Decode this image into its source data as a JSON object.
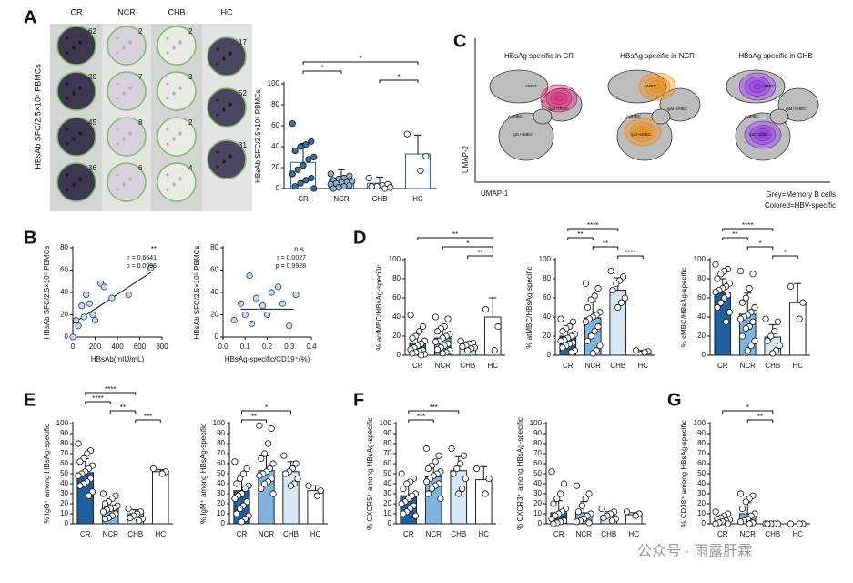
{
  "figure": {
    "panel_letters": [
      "A",
      "B",
      "C",
      "D",
      "E",
      "F",
      "G"
    ],
    "elispot": {
      "ylabel": "HBsAb SFC/2.5×10⁵ PBMCs",
      "columns": [
        {
          "label": "CR",
          "counts": [
            "62",
            "30",
            "45",
            "36"
          ]
        },
        {
          "label": "NCR",
          "counts": [
            "2",
            "7",
            "8",
            "6"
          ]
        },
        {
          "label": "CHB",
          "counts": [
            "2",
            "3",
            "2",
            "4"
          ]
        },
        {
          "label": "HC",
          "counts": [
            "17",
            "52",
            "31"
          ]
        }
      ]
    },
    "umap": {
      "ylabel": "UMAP-2",
      "xlabel": "UMAP-1",
      "panels": [
        {
          "title": "HBsAg specific in CR",
          "color": "#d81b72",
          "labels": [
            "atMBC",
            "actMBC",
            "IgG+cMBC",
            "IgM+cMBC"
          ]
        },
        {
          "title": "HBsAg specific in NCR",
          "color": "#f08a0c",
          "labels": [
            "atMBC",
            "actMBC",
            "IgG+cMBC",
            "IgM+cMBC"
          ]
        },
        {
          "title": "HBsAg specific in CHB",
          "color": "#8a2be2",
          "labels": [
            "atMBC",
            "actMBC",
            "IgG+cMBC",
            "IgM+cMBC"
          ]
        }
      ],
      "legend": [
        "Grey=Memory B cells",
        "Colored=HBV-specific"
      ]
    },
    "watermark": "公众号 · 雨露肝霖"
  },
  "chart_data": [
    {
      "type": "bar",
      "ylabel": "HBsAb SFC/2.5×10⁵ PBMCs",
      "categories": [
        "CR",
        "NCR",
        "CHB",
        "HC"
      ],
      "values": [
        25,
        8,
        5,
        33
      ],
      "errors": [
        18,
        10,
        6,
        18
      ],
      "points": [
        [
          62,
          45,
          42,
          40,
          36,
          30,
          28,
          22,
          18,
          14,
          10,
          8,
          5,
          2,
          0
        ],
        [
          14,
          12,
          10,
          9,
          8,
          7,
          6,
          6,
          5,
          4,
          3,
          2,
          1,
          0
        ],
        [
          10,
          4,
          3,
          2,
          2,
          1,
          0
        ],
        [
          52,
          31,
          17
        ]
      ],
      "colors": [
        "#ffffff",
        "#ffffff",
        "#ffffff",
        "#ffffff"
      ],
      "edge_color": "#1f5f9e",
      "point_colors": [
        "#3a6f9f",
        "#8fb3d3",
        "#ffffff",
        "#ffffff"
      ],
      "ylim": [
        0,
        100
      ],
      "yticks": [
        0,
        20,
        40,
        60,
        80,
        100
      ],
      "brackets": [
        {
          "groups": [
            "CR",
            "HC"
          ],
          "label": "*"
        },
        {
          "groups": [
            "CR",
            "NCR"
          ],
          "label": "*"
        },
        {
          "groups": [
            "CHB",
            "HC"
          ],
          "label": "*"
        }
      ]
    },
    {
      "type": "scatter",
      "ylabel": "HBsAb SFC/2.5×10⁵ PBMCs",
      "xlabel": "HBsAb(mIU/mL)",
      "x": [
        0,
        30,
        50,
        80,
        100,
        120,
        150,
        180,
        200,
        250,
        280,
        350,
        500,
        700
      ],
      "y": [
        0,
        15,
        10,
        28,
        18,
        38,
        30,
        20,
        15,
        48,
        45,
        35,
        38,
        62
      ],
      "fit_x": [
        0,
        700
      ],
      "fit_y": [
        12,
        58
      ],
      "color": "#c9daf0",
      "xlim": [
        0,
        800
      ],
      "xticks": [
        0,
        200,
        400,
        600,
        800
      ],
      "ylim": [
        0,
        80
      ],
      "yticks": [
        0,
        20,
        40,
        60,
        80
      ],
      "annotations": [
        "**",
        "r = 0.6641",
        "p = 0.0096"
      ]
    },
    {
      "type": "scatter",
      "ylabel": "HBsAb SFC/2.5×10⁵ PBMCs",
      "xlabel": "HBsAg-specific/CD19⁺(%)",
      "x": [
        0.05,
        0.08,
        0.1,
        0.12,
        0.13,
        0.15,
        0.18,
        0.2,
        0.22,
        0.25,
        0.27,
        0.3,
        0.33
      ],
      "y": [
        15,
        30,
        20,
        55,
        12,
        35,
        28,
        20,
        40,
        45,
        30,
        10,
        38
      ],
      "fit_x": [
        0.08,
        0.32
      ],
      "fit_y": [
        25,
        25
      ],
      "color": "#c9daf0",
      "xlim": [
        0,
        0.4
      ],
      "xticks": [
        {
          "value": 0,
          "label": "0.0"
        },
        0.1,
        0.2,
        0.3,
        0.4
      ],
      "ylim": [
        0,
        80
      ],
      "yticks": [
        0,
        20,
        40,
        60,
        80
      ],
      "annotations": [
        "n.s.",
        "r = 0.0027",
        "p = 0.9928"
      ]
    },
    {
      "type": "bar",
      "ylabel": "% actMBC/HBsAg-specific",
      "categories": [
        "CR",
        "NCR",
        "CHB",
        "HC"
      ],
      "values": [
        13,
        18,
        10,
        40
      ],
      "errors": [
        9,
        11,
        4,
        20
      ],
      "points": [
        [
          42,
          30,
          25,
          20,
          18,
          15,
          12,
          10,
          8,
          6,
          5,
          4,
          3,
          2,
          1,
          0
        ],
        [
          40,
          38,
          30,
          28,
          25,
          22,
          20,
          18,
          15,
          14,
          12,
          10,
          8,
          6,
          5,
          3,
          2
        ],
        [
          15,
          13,
          12,
          10,
          9,
          8,
          7,
          5
        ],
        [
          48,
          30,
          5
        ]
      ],
      "colors": [
        "#1f5f9e",
        "#7fb3e0",
        "#d6e7f5",
        "#ffffff"
      ],
      "edge_color": "#222222",
      "point_colors": [
        "#ffffff",
        "#ffffff",
        "#ffffff",
        "#ffffff"
      ],
      "ylim": [
        0,
        100
      ],
      "yticks": [
        0,
        20,
        40,
        60,
        80,
        100
      ],
      "brackets": [
        {
          "groups": [
            "CR",
            "HC"
          ],
          "label": "**"
        },
        {
          "groups": [
            "NCR",
            "HC"
          ],
          "label": "*"
        },
        {
          "groups": [
            "CHB",
            "HC"
          ],
          "label": "**"
        }
      ]
    },
    {
      "type": "bar",
      "ylabel": "% atMBC/HBsAg-specific",
      "categories": [
        "CR",
        "NCR",
        "CHB",
        "HC"
      ],
      "values": [
        20,
        39,
        68,
        4
      ],
      "errors": [
        10,
        18,
        13,
        1
      ],
      "points": [
        [
          38,
          35,
          30,
          28,
          25,
          22,
          20,
          18,
          16,
          15,
          13,
          12,
          10,
          8,
          5,
          3
        ],
        [
          75,
          70,
          62,
          58,
          50,
          45,
          42,
          40,
          38,
          35,
          30,
          25,
          20,
          15,
          10,
          5,
          2
        ],
        [
          88,
          82,
          78,
          75,
          68,
          60,
          55,
          50
        ],
        [
          5,
          4,
          3
        ]
      ],
      "colors": [
        "#1f5f9e",
        "#7fb3e0",
        "#d6e7f5",
        "#ffffff"
      ],
      "edge_color": "#222222",
      "point_colors": [
        "#ffffff",
        "#ffffff",
        "#ffffff",
        "#ffffff"
      ],
      "ylim": [
        0,
        100
      ],
      "yticks": [
        0,
        20,
        40,
        60,
        80,
        100
      ],
      "brackets": [
        {
          "groups": [
            "CR",
            "CHB"
          ],
          "label": "****"
        },
        {
          "groups": [
            "CR",
            "NCR"
          ],
          "label": "**"
        },
        {
          "groups": [
            "NCR",
            "CHB"
          ],
          "label": "**"
        },
        {
          "groups": [
            "CHB",
            "HC"
          ],
          "label": "****"
        }
      ]
    },
    {
      "type": "bar",
      "ylabel": "% cMBC/HBsAg-specific",
      "categories": [
        "CR",
        "NCR",
        "CHB",
        "HC"
      ],
      "values": [
        65,
        43,
        19,
        55
      ],
      "errors": [
        15,
        22,
        13,
        20
      ],
      "points": [
        [
          95,
          90,
          88,
          85,
          80,
          75,
          72,
          70,
          68,
          66,
          63,
          60,
          55,
          50,
          45,
          35
        ],
        [
          88,
          85,
          70,
          60,
          55,
          50,
          45,
          42,
          40,
          38,
          35,
          30,
          28,
          20,
          15,
          10,
          5
        ],
        [
          38,
          35,
          25,
          20,
          15,
          10,
          5,
          2
        ],
        [
          72,
          55,
          38
        ]
      ],
      "colors": [
        "#1f5f9e",
        "#7fb3e0",
        "#d6e7f5",
        "#ffffff"
      ],
      "edge_color": "#222222",
      "point_colors": [
        "#ffffff",
        "#ffffff",
        "#ffffff",
        "#ffffff"
      ],
      "ylim": [
        0,
        100
      ],
      "yticks": [
        0,
        20,
        40,
        60,
        80,
        100
      ],
      "brackets": [
        {
          "groups": [
            "CR",
            "CHB"
          ],
          "label": "****"
        },
        {
          "groups": [
            "CR",
            "NCR"
          ],
          "label": "**"
        },
        {
          "groups": [
            "NCR",
            "CHB"
          ],
          "label": "*"
        },
        {
          "groups": [
            "CHB",
            "HC"
          ],
          "label": "*"
        }
      ]
    },
    {
      "type": "bar",
      "ylabel": "% IgG⁺ among HBsAg-specific",
      "categories": [
        "CR",
        "NCR",
        "CHB",
        "HC"
      ],
      "values": [
        51,
        18,
        10,
        52
      ],
      "errors": [
        14,
        7,
        4,
        2
      ],
      "points": [
        [
          80,
          73,
          70,
          65,
          62,
          58,
          55,
          52,
          50,
          48,
          45,
          42,
          40,
          38,
          32,
          28
        ],
        [
          30,
          28,
          25,
          22,
          20,
          18,
          16,
          15,
          14,
          12,
          10,
          8,
          6,
          5
        ],
        [
          15,
          12,
          10,
          8,
          6,
          5,
          3
        ],
        [
          55,
          52,
          50
        ]
      ],
      "colors": [
        "#1f5f9e",
        "#7fb3e0",
        "#d6e7f5",
        "#ffffff"
      ],
      "edge_color": "#222222",
      "point_colors": [
        "#ffffff",
        "#ffffff",
        "#ffffff",
        "#ffffff"
      ],
      "ylim": [
        0,
        100
      ],
      "yticks": [
        0,
        10,
        20,
        30,
        40,
        50,
        60,
        70,
        80,
        90,
        100
      ],
      "brackets": [
        {
          "groups": [
            "CR",
            "CHB"
          ],
          "label": "****"
        },
        {
          "groups": [
            "CR",
            "NCR"
          ],
          "label": "****"
        },
        {
          "groups": [
            "NCR",
            "CHB"
          ],
          "label": "**"
        },
        {
          "groups": [
            "CHB",
            "HC"
          ],
          "label": "***"
        }
      ]
    },
    {
      "type": "bar",
      "ylabel": "% IgM⁺ among HBsAg-specific",
      "categories": [
        "CR",
        "NCR",
        "CHB",
        "HC"
      ],
      "values": [
        33,
        53,
        52,
        33
      ],
      "errors": [
        16,
        15,
        10,
        5
      ],
      "points": [
        [
          62,
          55,
          50,
          45,
          40,
          38,
          35,
          30,
          28,
          25,
          22,
          18,
          15,
          10,
          8,
          5,
          2
        ],
        [
          98,
          95,
          80,
          70,
          65,
          60,
          55,
          52,
          50,
          48,
          45,
          42,
          40,
          35,
          30
        ],
        [
          68,
          60,
          55,
          52,
          50,
          45,
          40,
          38
        ],
        [
          38,
          33,
          28
        ]
      ],
      "colors": [
        "#1f5f9e",
        "#7fb3e0",
        "#d6e7f5",
        "#ffffff"
      ],
      "edge_color": "#222222",
      "point_colors": [
        "#ffffff",
        "#ffffff",
        "#ffffff",
        "#ffffff"
      ],
      "ylim": [
        0,
        100
      ],
      "yticks": [
        0,
        10,
        20,
        30,
        40,
        50,
        60,
        70,
        80,
        90,
        100
      ],
      "brackets": [
        {
          "groups": [
            "CR",
            "CHB"
          ],
          "label": "*"
        },
        {
          "groups": [
            "CR",
            "NCR"
          ],
          "label": "**"
        }
      ]
    },
    {
      "type": "bar",
      "ylabel": "% CXCR5⁺ among HBsAg-specific",
      "categories": [
        "CR",
        "NCR",
        "CHB",
        "HC"
      ],
      "values": [
        28,
        47,
        53,
        44
      ],
      "errors": [
        12,
        13,
        14,
        13
      ],
      "points": [
        [
          50,
          45,
          42,
          40,
          35,
          30,
          28,
          25,
          22,
          20,
          18,
          15,
          12,
          10,
          8
        ],
        [
          75,
          68,
          62,
          58,
          55,
          52,
          50,
          48,
          45,
          42,
          40,
          38,
          35,
          30,
          25
        ],
        [
          75,
          68,
          60,
          55,
          50,
          45,
          35,
          30
        ],
        [
          55,
          45,
          30
        ]
      ],
      "colors": [
        "#1f5f9e",
        "#7fb3e0",
        "#d6e7f5",
        "#ffffff"
      ],
      "edge_color": "#222222",
      "point_colors": [
        "#ffffff",
        "#ffffff",
        "#ffffff",
        "#ffffff"
      ],
      "ylim": [
        0,
        100
      ],
      "yticks": [
        0,
        10,
        20,
        30,
        40,
        50,
        60,
        70,
        80,
        90,
        100
      ],
      "brackets": [
        {
          "groups": [
            "CR",
            "CHB"
          ],
          "label": "***"
        },
        {
          "groups": [
            "CR",
            "NCR"
          ],
          "label": "***"
        }
      ]
    },
    {
      "type": "bar",
      "ylabel": "% CXCR3⁺ among HBsAg-specific",
      "categories": [
        "CR",
        "NCR",
        "CHB",
        "HC"
      ],
      "values": [
        11,
        11,
        8,
        9
      ],
      "errors": [
        12,
        11,
        4,
        2
      ],
      "points": [
        [
          52,
          40,
          30,
          25,
          20,
          15,
          12,
          10,
          8,
          5,
          3,
          2,
          1,
          0
        ],
        [
          38,
          30,
          25,
          18,
          12,
          10,
          8,
          5,
          3,
          2,
          1
        ],
        [
          15,
          12,
          10,
          8,
          6,
          5,
          3
        ],
        [
          12,
          10,
          8
        ]
      ],
      "colors": [
        "#1f5f9e",
        "#7fb3e0",
        "#d6e7f5",
        "#ffffff"
      ],
      "edge_color": "#222222",
      "point_colors": [
        "#ffffff",
        "#ffffff",
        "#ffffff",
        "#ffffff"
      ],
      "ylim": [
        0,
        100
      ],
      "yticks": [
        0,
        10,
        20,
        30,
        40,
        50,
        60,
        70,
        80,
        90,
        100
      ],
      "brackets": []
    },
    {
      "type": "bar",
      "ylabel": "% CD38⁺ among HBsAg-specific",
      "categories": [
        "CR",
        "NCR",
        "CHB",
        "HC"
      ],
      "values": [
        3,
        10,
        0,
        0
      ],
      "errors": [
        3,
        11,
        0,
        0
      ],
      "points": [
        [
          12,
          10,
          8,
          6,
          5,
          4,
          3,
          2,
          1,
          0,
          0
        ],
        [
          30,
          28,
          25,
          22,
          15,
          10,
          8,
          5,
          3,
          2,
          1,
          0
        ],
        [
          0,
          0,
          0,
          0,
          0
        ],
        [
          0,
          0,
          0
        ]
      ],
      "colors": [
        "#1f5f9e",
        "#7fb3e0",
        "#d6e7f5",
        "#ffffff"
      ],
      "edge_color": "#222222",
      "point_colors": [
        "#ffffff",
        "#ffffff",
        "#ffffff",
        "#ffffff"
      ],
      "ylim": [
        0,
        100
      ],
      "yticks": [
        0,
        10,
        20,
        30,
        40,
        50,
        60,
        70,
        80,
        90,
        100
      ],
      "brackets": [
        {
          "groups": [
            "CR",
            "CHB"
          ],
          "label": "*"
        },
        {
          "groups": [
            "NCR",
            "CHB"
          ],
          "label": "**"
        }
      ]
    }
  ]
}
